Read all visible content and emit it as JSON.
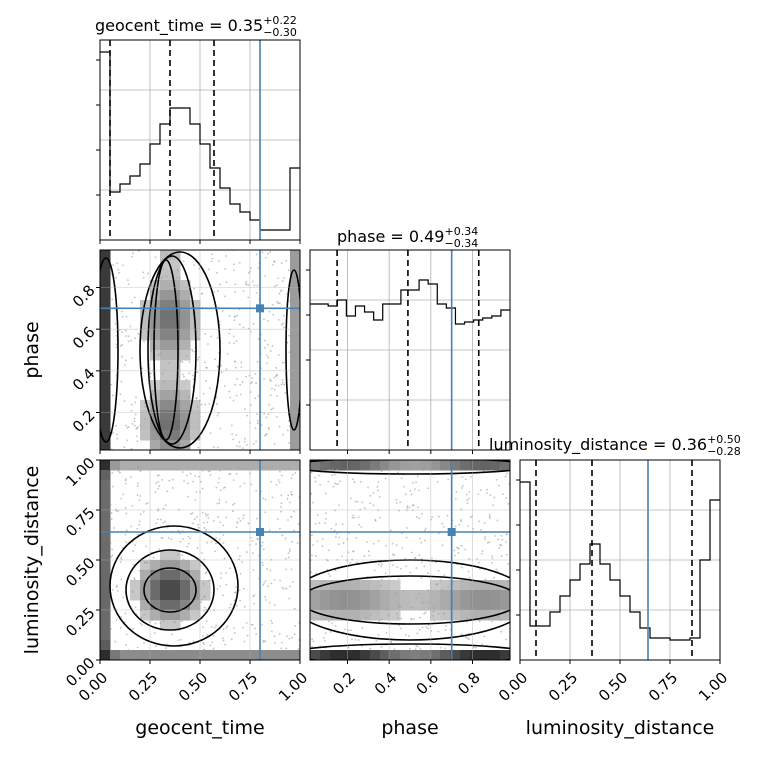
{
  "chart_data": {
    "type": "corner",
    "parameters": [
      "geocent_time",
      "phase",
      "luminosity_distance"
    ],
    "axis_labels": [
      "geocent_time",
      "phase",
      "luminosity_distance"
    ],
    "ranges": [
      [
        0,
        1
      ],
      [
        0.02,
        0.98
      ],
      [
        0,
        1
      ]
    ],
    "ticks": [
      {
        "values": [
          0,
          0.25,
          0.5,
          0.75,
          1.0
        ],
        "labels": [
          "0.00",
          "0.25",
          "0.50",
          "0.75",
          "1.00"
        ]
      },
      {
        "values": [
          0.2,
          0.4,
          0.6,
          0.8
        ],
        "labels": [
          "0.2",
          "0.4",
          "0.6",
          "0.8"
        ]
      },
      {
        "values": [
          0,
          0.25,
          0.5,
          0.75,
          1.0
        ],
        "labels": [
          "0.00",
          "0.25",
          "0.50",
          "0.75",
          "1.00"
        ]
      }
    ],
    "titles": [
      {
        "text": "geocent_time = 0.35",
        "plus": "+0.22",
        "minus": "−0.30"
      },
      {
        "text": "phase = 0.49",
        "plus": "+0.34",
        "minus": "−0.34"
      },
      {
        "text": "luminosity_distance = 0.36",
        "plus": "+0.50",
        "minus": "−0.28"
      }
    ],
    "quantiles": [
      [
        0.05,
        0.35,
        0.57
      ],
      [
        0.15,
        0.49,
        0.83
      ],
      [
        0.08,
        0.36,
        0.86
      ]
    ],
    "truths": [
      0.8,
      0.7,
      0.64
    ],
    "truth_color": "#4682b4",
    "hist1d": [
      [
        0.94,
        0.24,
        0.28,
        0.32,
        0.38,
        0.48,
        0.58,
        0.66,
        0.66,
        0.58,
        0.48,
        0.36,
        0.26,
        0.18,
        0.14,
        0.1,
        0.05,
        0.05,
        0.05,
        0.36
      ],
      [
        0.73,
        0.73,
        0.72,
        0.75,
        0.67,
        0.72,
        0.69,
        0.65,
        0.73,
        0.73,
        0.8,
        0.8,
        0.85,
        0.83,
        0.73,
        0.71,
        0.63,
        0.64,
        0.65,
        0.66,
        0.67,
        0.7
      ],
      [
        0.89,
        0.17,
        0.17,
        0.24,
        0.32,
        0.4,
        0.48,
        0.58,
        0.48,
        0.4,
        0.32,
        0.24,
        0.16,
        0.11,
        0.11,
        0.1,
        0.1,
        0.11,
        0.5,
        0.8
      ]
    ],
    "grid": true
  }
}
